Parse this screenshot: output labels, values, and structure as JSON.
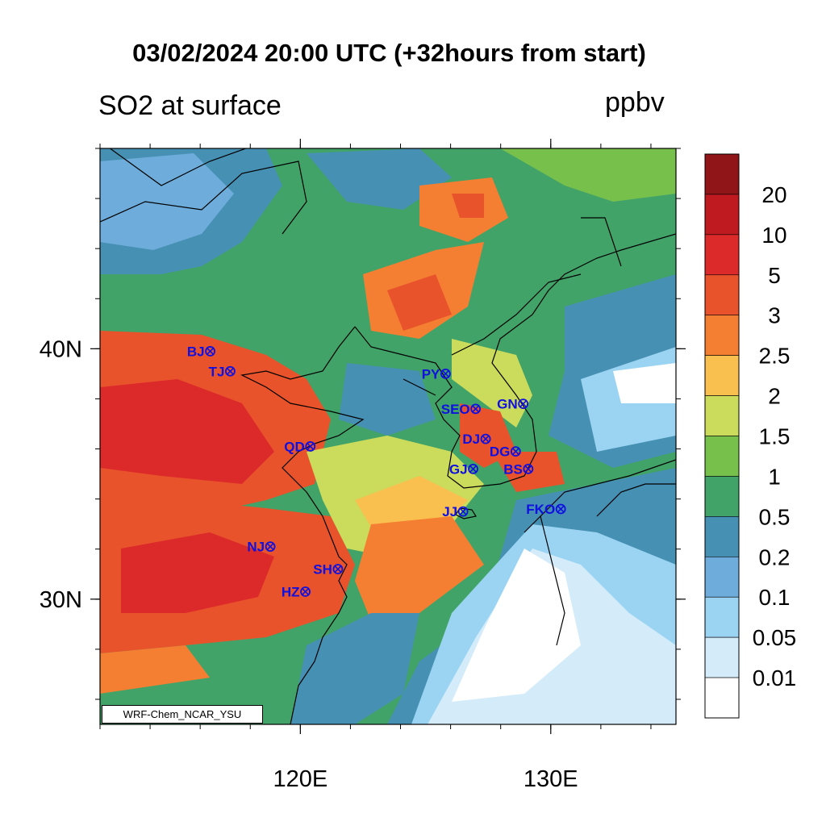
{
  "title": "03/02/2024 20:00 UTC (+32hours from start)",
  "variable": "SO2 at surface",
  "units": "ppbv",
  "credit": "WRF-Chem_NCAR_YSU",
  "axes": {
    "lon_range": [
      112,
      135
    ],
    "lat_range": [
      25,
      48
    ],
    "x_labels": [
      {
        "value": 120,
        "text": "120E"
      },
      {
        "value": 130,
        "text": "130E"
      }
    ],
    "y_labels": [
      {
        "value": 40,
        "text": "40N"
      },
      {
        "value": 30,
        "text": "30N"
      }
    ],
    "x_minor_ticks": [
      112,
      114,
      116,
      118,
      120,
      122,
      124,
      126,
      128,
      130,
      132,
      134
    ],
    "y_minor_ticks": [
      26,
      28,
      30,
      32,
      34,
      36,
      38,
      40,
      42,
      44,
      46,
      48
    ]
  },
  "colorbar": {
    "labels": [
      "20",
      "10",
      "5",
      "3",
      "2.5",
      "2",
      "1.5",
      "1",
      "0.5",
      "0.2",
      "0.1",
      "0.05",
      "0.01"
    ],
    "colors": [
      "#8f1519",
      "#bf1a1f",
      "#dc2a2a",
      "#e8532c",
      "#f47f32",
      "#f9bf4f",
      "#cbdb5b",
      "#77c04b",
      "#41a368",
      "#4690b3",
      "#6eaddb",
      "#9bd4f2",
      "#d4ecfa",
      "#ffffff"
    ]
  },
  "cities": [
    {
      "name": "BJ",
      "lon": 116.4,
      "lat": 39.9
    },
    {
      "name": "TJ",
      "lon": 117.2,
      "lat": 39.1
    },
    {
      "name": "QD",
      "lon": 120.4,
      "lat": 36.1
    },
    {
      "name": "NJ",
      "lon": 118.8,
      "lat": 32.1
    },
    {
      "name": "SH",
      "lon": 121.5,
      "lat": 31.2
    },
    {
      "name": "HZ",
      "lon": 120.2,
      "lat": 30.3
    },
    {
      "name": "PY",
      "lon": 125.8,
      "lat": 39.0
    },
    {
      "name": "SEO",
      "lon": 127.0,
      "lat": 37.6
    },
    {
      "name": "GN",
      "lon": 128.9,
      "lat": 37.8
    },
    {
      "name": "DJ",
      "lon": 127.4,
      "lat": 36.4
    },
    {
      "name": "DG",
      "lon": 128.6,
      "lat": 35.9
    },
    {
      "name": "GJ",
      "lon": 126.9,
      "lat": 35.2
    },
    {
      "name": "BS",
      "lon": 129.1,
      "lat": 35.2
    },
    {
      "name": "JJ",
      "lon": 126.5,
      "lat": 33.5
    },
    {
      "name": "FKO",
      "lon": 130.4,
      "lat": 33.6
    }
  ]
}
